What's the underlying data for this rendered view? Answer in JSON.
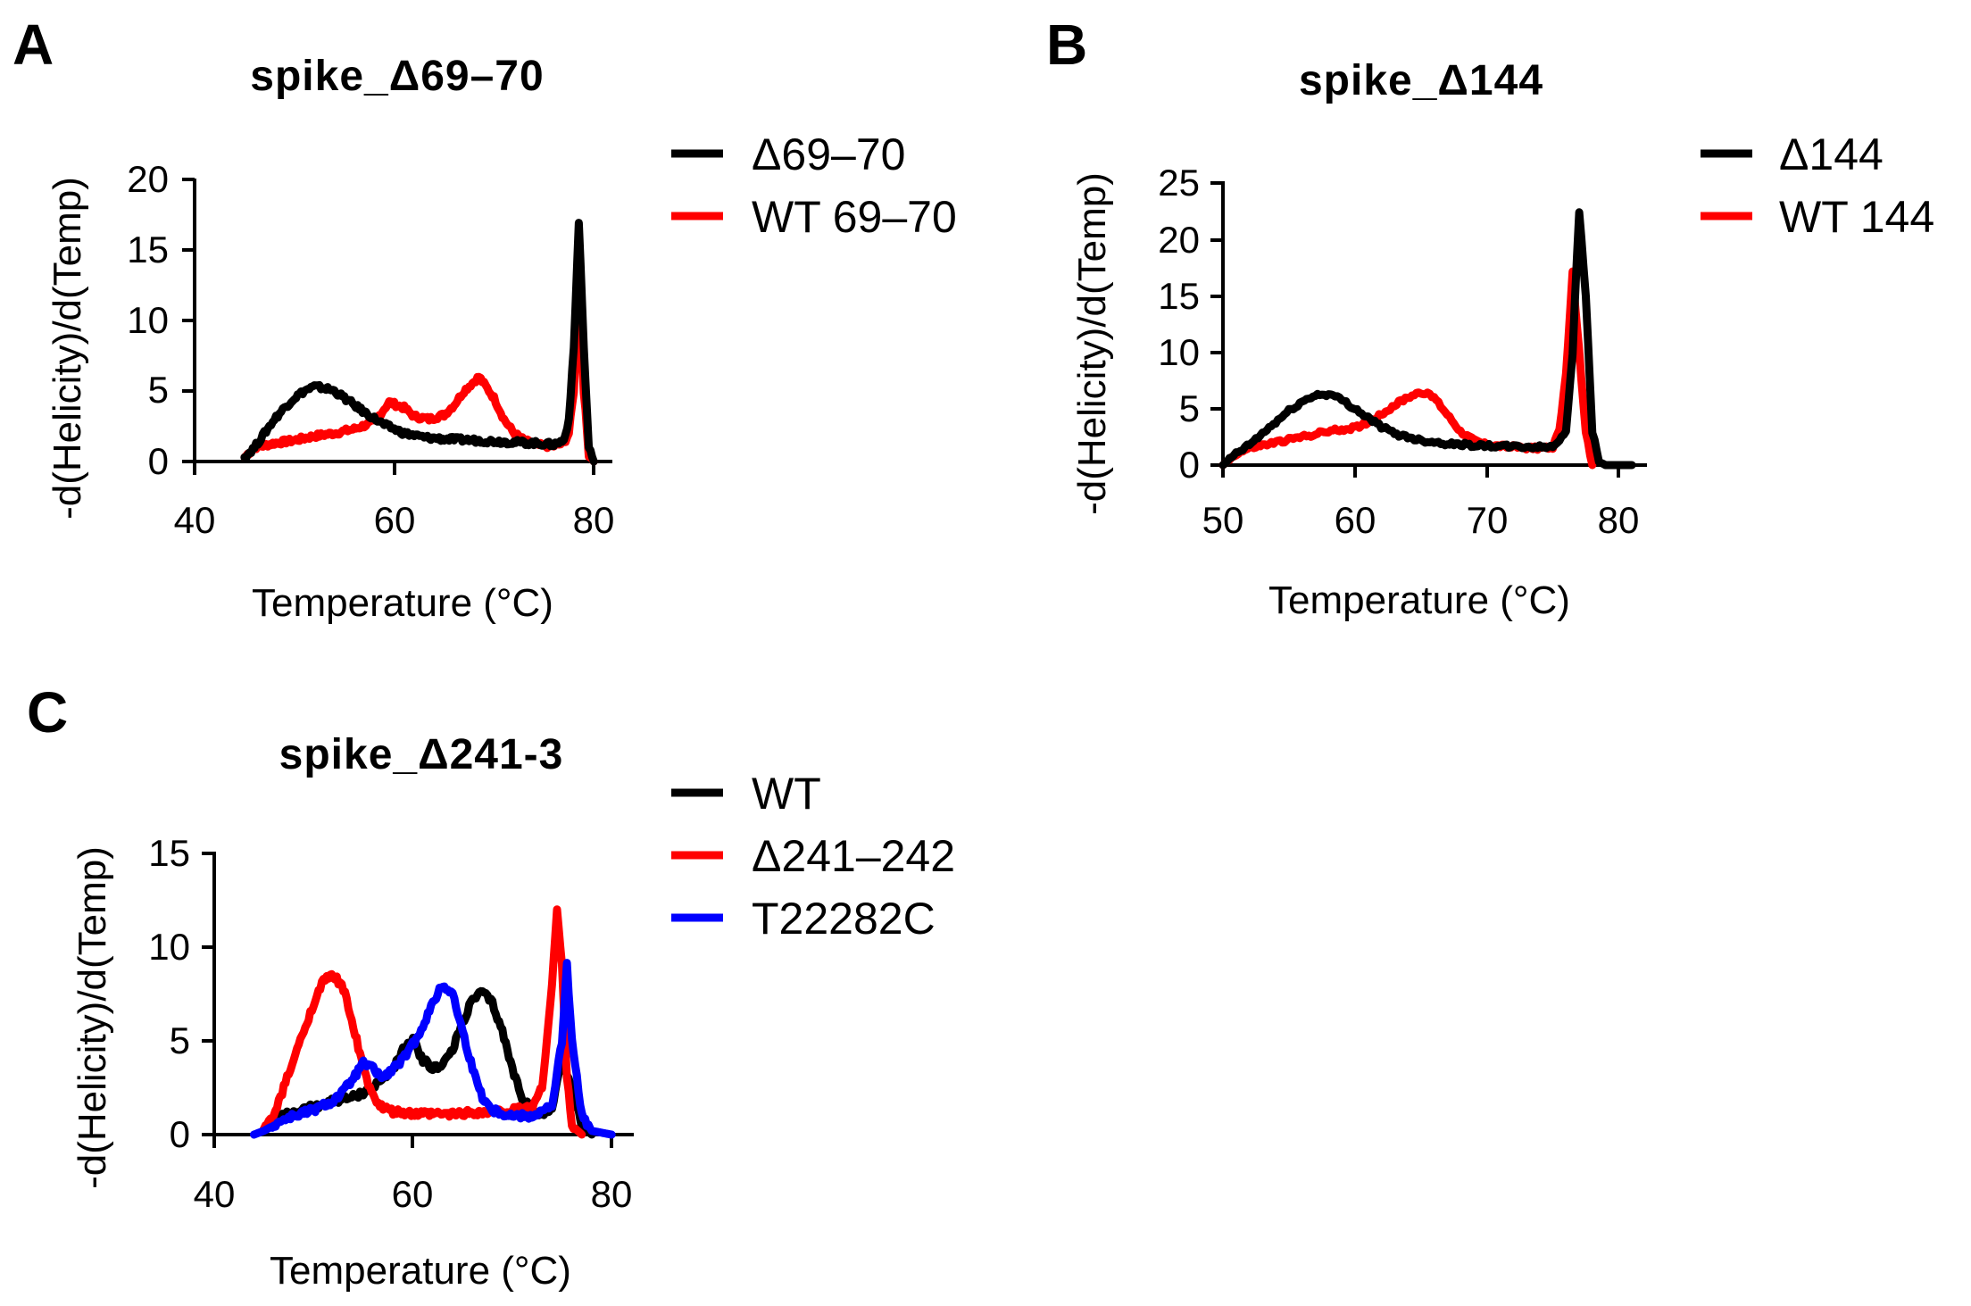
{
  "chart_data": [
    {
      "type": "line",
      "panel": "A",
      "title": "spike_Δ69–70",
      "xlabel": "Temperature (°C)",
      "ylabel": "-d(Helicity)/d(Temp)",
      "xlim": [
        40,
        82
      ],
      "ylim": [
        0,
        20
      ],
      "xticks": [
        40,
        60,
        80
      ],
      "yticks": [
        0,
        5,
        10,
        15,
        20
      ],
      "legend_position": "right",
      "series": [
        {
          "name": "WT 69–70",
          "color": "#ff0000",
          "x": [
            45,
            46,
            48,
            50,
            52,
            54,
            56,
            58,
            59.5,
            61,
            62,
            63.5,
            65,
            66,
            67,
            68.5,
            70,
            71,
            72,
            73,
            74,
            75,
            76,
            77,
            77.5,
            78,
            78.5,
            79,
            79.5,
            80
          ],
          "y": [
            0.3,
            1.0,
            1.3,
            1.5,
            1.8,
            2.0,
            2.3,
            2.8,
            4.2,
            3.8,
            3.2,
            3.0,
            3.3,
            4.0,
            5.0,
            6.0,
            4.5,
            3.0,
            2.0,
            1.5,
            1.2,
            1.1,
            1.1,
            1.3,
            2.0,
            5.0,
            12.0,
            5.0,
            0.5,
            0
          ]
        },
        {
          "name": "Δ69–70",
          "color": "#000000",
          "x": [
            45,
            46,
            47,
            48,
            49,
            50,
            51,
            52,
            53,
            54,
            55,
            57,
            59,
            61,
            63,
            65,
            68,
            71,
            74,
            76,
            77,
            77.5,
            78,
            78.5,
            79,
            79.5,
            80
          ],
          "y": [
            0.3,
            1.0,
            2.0,
            3.0,
            3.8,
            4.5,
            5.0,
            5.3,
            5.2,
            5.0,
            4.5,
            3.5,
            2.6,
            2.0,
            1.7,
            1.6,
            1.5,
            1.4,
            1.3,
            1.2,
            1.5,
            3.0,
            8.0,
            17.0,
            8.0,
            1.0,
            0
          ]
        }
      ]
    },
    {
      "type": "line",
      "panel": "B",
      "title": "spike_Δ144",
      "xlabel": "Temperature (°C)",
      "ylabel": "-d(Helicity)/d(Temp)",
      "xlim": [
        50,
        82
      ],
      "ylim": [
        0,
        25
      ],
      "xticks": [
        50,
        60,
        70,
        80
      ],
      "yticks": [
        0,
        5,
        10,
        15,
        20,
        25
      ],
      "legend_position": "right",
      "series": [
        {
          "name": "WT 144",
          "color": "#ff0000",
          "x": [
            50,
            51,
            52,
            54,
            56,
            58,
            60,
            61,
            62,
            63,
            64,
            65,
            66,
            67,
            68,
            69,
            70,
            72,
            74,
            75,
            75.5,
            76,
            76.5,
            77,
            77.5,
            78
          ],
          "y": [
            0,
            1.0,
            1.5,
            2.0,
            2.5,
            3.0,
            3.3,
            3.8,
            4.5,
            5.3,
            6.0,
            6.5,
            6.0,
            4.5,
            3.0,
            2.2,
            1.8,
            1.6,
            1.5,
            1.6,
            3.0,
            8.0,
            17.0,
            10.0,
            3.0,
            0
          ]
        },
        {
          "name": "Δ144",
          "color": "#000000",
          "x": [
            50,
            51,
            52,
            53,
            54,
            55,
            56,
            57,
            58,
            59,
            60,
            61,
            62,
            63,
            65,
            67,
            70,
            73,
            75,
            76,
            76.5,
            77,
            77.5,
            78,
            78.5,
            79,
            80,
            81
          ],
          "y": [
            0,
            1.0,
            1.8,
            2.8,
            3.8,
            4.8,
            5.6,
            6.2,
            6.3,
            5.8,
            5.0,
            4.2,
            3.4,
            2.8,
            2.2,
            1.9,
            1.7,
            1.6,
            1.6,
            3.0,
            10.0,
            22.5,
            15.0,
            3.0,
            0.3,
            0,
            0,
            0
          ]
        }
      ]
    },
    {
      "type": "line",
      "panel": "C",
      "title": "spike_Δ241-3",
      "xlabel": "Temperature (°C)",
      "ylabel": "-d(Helicity)/d(Temp)",
      "xlim": [
        40,
        82
      ],
      "ylim": [
        0,
        15
      ],
      "xticks": [
        40,
        60,
        80
      ],
      "yticks": [
        0,
        5,
        10,
        15
      ],
      "legend_position": "right",
      "series": [
        {
          "name": "WT",
          "color": "#000000",
          "x": [
            45,
            46,
            48,
            50,
            52,
            54,
            56,
            58,
            59,
            60,
            61,
            62,
            63,
            64,
            65,
            66,
            67,
            68,
            69,
            70,
            71,
            72,
            73,
            74,
            75,
            76,
            77,
            78
          ],
          "y": [
            0.3,
            0.8,
            1.2,
            1.5,
            1.8,
            2.0,
            2.5,
            3.5,
            4.5,
            5.0,
            4.0,
            3.5,
            3.8,
            4.5,
            6.0,
            7.2,
            7.6,
            7.0,
            5.5,
            3.5,
            2.0,
            1.2,
            1.0,
            1.5,
            4.0,
            2.5,
            0.5,
            0
          ]
        },
        {
          "name": "Δ241–242",
          "color": "#ff0000",
          "x": [
            45,
            46,
            47,
            48,
            49,
            50,
            51,
            52,
            53,
            54,
            55,
            56,
            57,
            58,
            60,
            62,
            64,
            66,
            68,
            70,
            72,
            73,
            74,
            74.5,
            75,
            75.5,
            76,
            77
          ],
          "y": [
            0.3,
            1.0,
            2.5,
            4.0,
            5.5,
            7.0,
            8.2,
            8.5,
            7.8,
            5.8,
            3.5,
            2.0,
            1.4,
            1.2,
            1.1,
            1.1,
            1.1,
            1.2,
            1.2,
            1.3,
            1.5,
            2.5,
            8.0,
            12.0,
            9.0,
            3.0,
            0.5,
            0
          ]
        },
        {
          "name": "T22282C",
          "color": "#0000ff",
          "x": [
            44,
            45,
            46,
            47,
            48,
            50,
            52,
            53,
            54,
            55,
            56,
            57,
            58,
            59,
            60,
            61,
            62,
            63,
            64,
            65,
            66,
            67,
            68,
            70,
            72,
            74,
            75,
            75.5,
            76,
            77,
            78,
            80
          ],
          "y": [
            0,
            0.2,
            0.5,
            0.8,
            1.0,
            1.3,
            1.8,
            2.3,
            3.0,
            3.8,
            3.5,
            3.0,
            3.5,
            4.0,
            4.8,
            5.8,
            7.0,
            8.0,
            7.5,
            5.5,
            3.5,
            2.0,
            1.3,
            1.0,
            1.0,
            1.5,
            5.0,
            9.0,
            5.0,
            1.0,
            0.2,
            0
          ]
        }
      ]
    }
  ]
}
